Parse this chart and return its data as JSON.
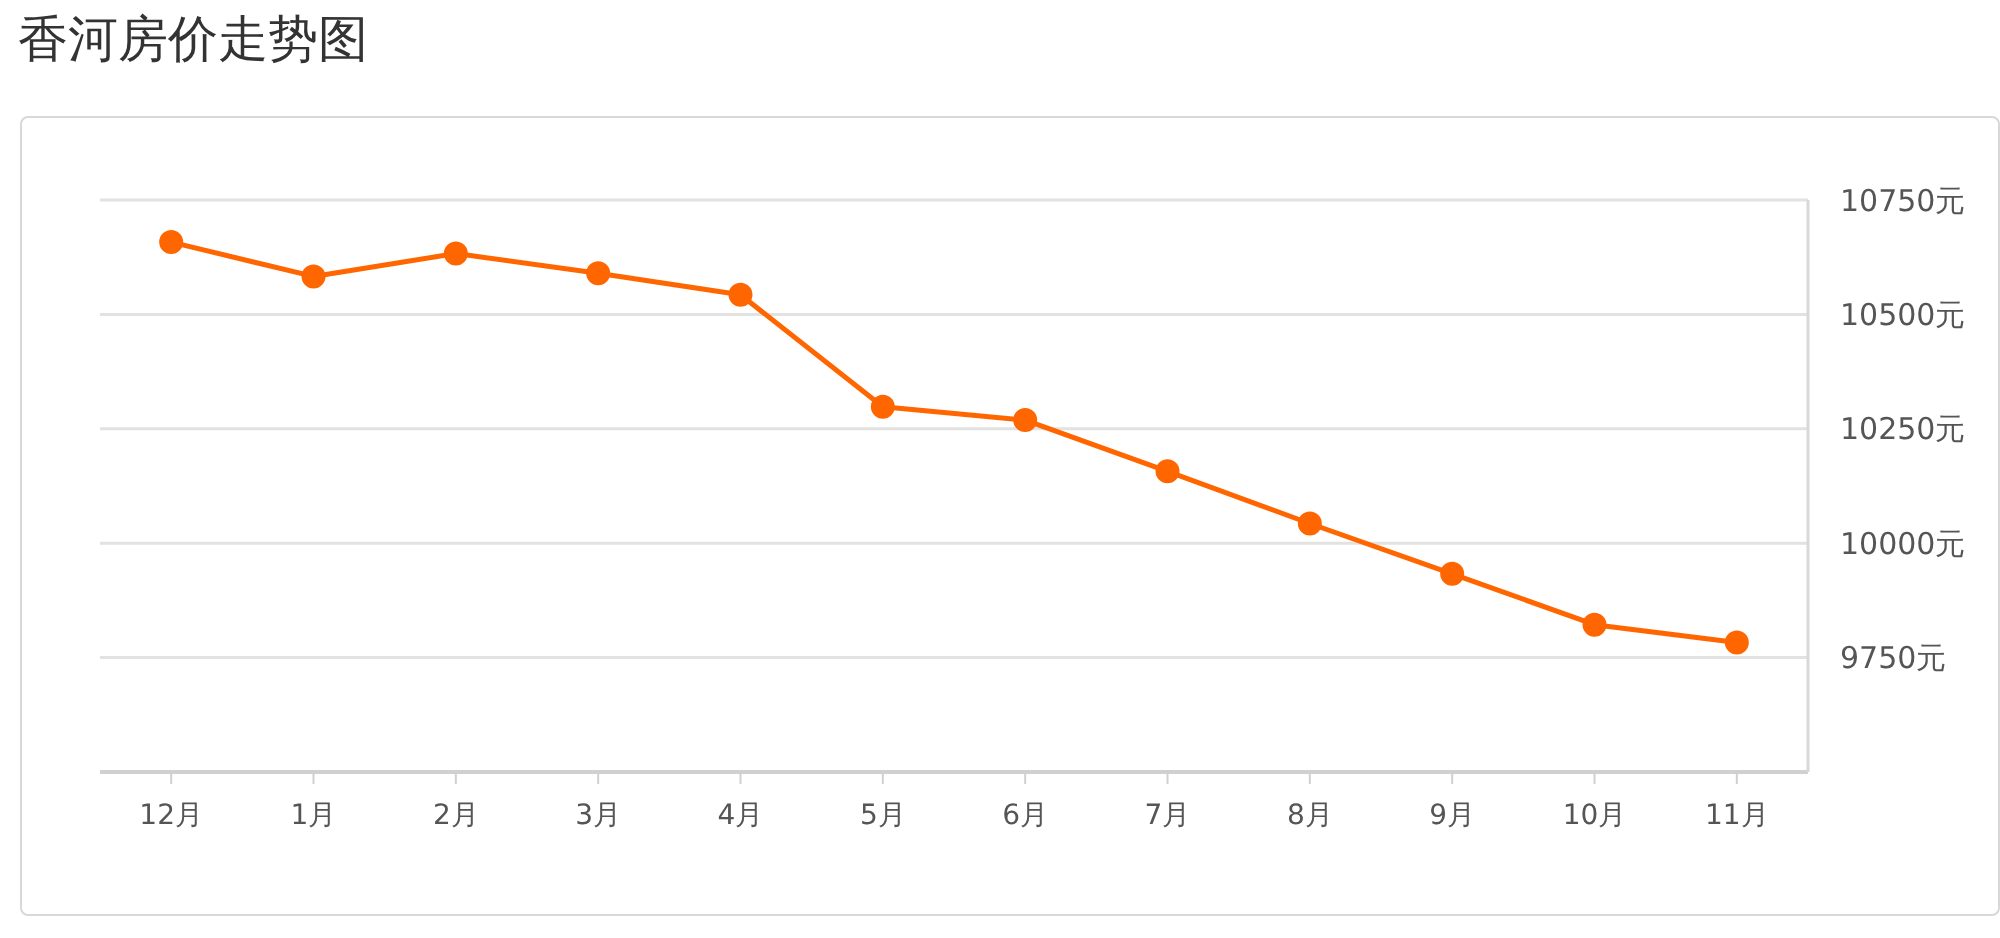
{
  "chart_data": {
    "type": "line",
    "title": "香河房价走势图",
    "categories": [
      "12月",
      "1月",
      "2月",
      "3月",
      "4月",
      "5月",
      "6月",
      "7月",
      "8月",
      "9月",
      "10月",
      "11月"
    ],
    "series": [
      {
        "color": "#ff6600",
        "values": [
          10658,
          10583,
          10633,
          10590,
          10543,
          10298,
          10269,
          10157,
          10043,
          9933,
          9822,
          9783
        ]
      }
    ],
    "ylim": [
      9500,
      10750
    ],
    "yticks": [
      {
        "value": 9500,
        "label": null
      },
      {
        "value": 9750,
        "label": "9750元"
      },
      {
        "value": 10000,
        "label": "10000元"
      },
      {
        "value": 10250,
        "label": "10250元"
      },
      {
        "value": 10500,
        "label": "10500元"
      },
      {
        "value": 10750,
        "label": "10750元"
      }
    ],
    "grid": "y",
    "marker": "circle",
    "line_style": "solid"
  }
}
